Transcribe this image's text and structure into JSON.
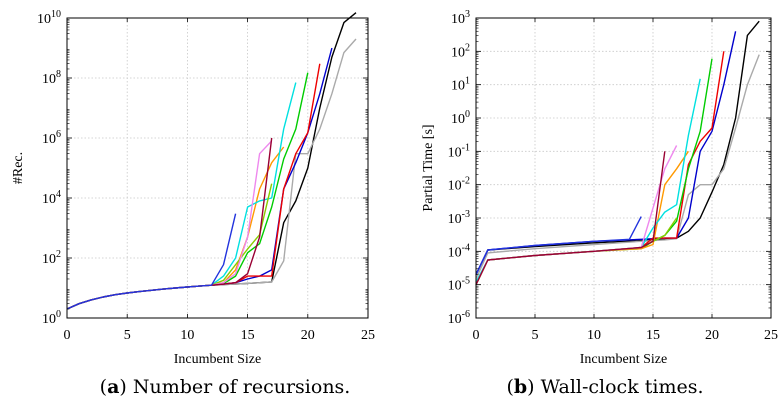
{
  "chart_data": [
    {
      "type": "line",
      "panel_label": "a",
      "caption": "Number of recursions.",
      "xlabel": "Incumbent Size",
      "ylabel": "#Rec.",
      "xlim": [
        0,
        25
      ],
      "xticks": [
        0,
        5,
        10,
        15,
        20,
        25
      ],
      "ylim": [
        1,
        10000000000.0
      ],
      "yscale": "log",
      "yticks": [
        {
          "value": 1,
          "base": "10",
          "exp": "0"
        },
        {
          "value": 100,
          "base": "10",
          "exp": "2"
        },
        {
          "value": 10000,
          "base": "10",
          "exp": "4"
        },
        {
          "value": 1000000,
          "base": "10",
          "exp": "6"
        },
        {
          "value": 100000000,
          "base": "10",
          "exp": "8"
        },
        {
          "value": 10000000000,
          "base": "10",
          "exp": "10"
        }
      ],
      "grid": true,
      "series": [
        {
          "color": "#000000",
          "x": [
            0,
            1,
            2,
            3,
            4,
            5,
            6,
            7,
            8,
            9,
            10,
            11,
            12,
            13,
            14,
            15,
            16,
            17,
            18,
            19,
            20,
            21,
            22,
            23,
            24
          ],
          "y": [
            2,
            3,
            4,
            5,
            6,
            6.8,
            7.6,
            8.4,
            9.2,
            10,
            10.8,
            11.6,
            12.4,
            13,
            13.6,
            14.2,
            15,
            16,
            1500,
            8000,
            100000.0,
            10000000.0,
            500000000.0,
            7000000000.0,
            15000000000.0
          ]
        },
        {
          "color": "#aaaaaa",
          "x": [
            0,
            1,
            2,
            3,
            4,
            5,
            6,
            7,
            8,
            9,
            10,
            11,
            12,
            13,
            14,
            15,
            16,
            17,
            18,
            19,
            20,
            21,
            22,
            23,
            24
          ],
          "y": [
            2,
            3,
            4,
            5,
            6,
            6.8,
            7.6,
            8.4,
            9.2,
            10,
            10.8,
            11.6,
            12.4,
            13,
            13.6,
            14.2,
            15,
            15.8,
            80,
            300000.0,
            300000.0,
            2000000.0,
            30000000.0,
            700000000.0,
            2000000000.0
          ]
        },
        {
          "color": "#0000cc",
          "x": [
            0,
            1,
            2,
            3,
            4,
            5,
            6,
            7,
            8,
            9,
            10,
            11,
            12,
            13,
            14,
            15,
            16,
            17,
            18,
            19,
            20,
            21,
            22
          ],
          "y": [
            2,
            3,
            4,
            5,
            6,
            6.8,
            7.6,
            8.4,
            9.2,
            10,
            10.8,
            11.6,
            12.4,
            13.5,
            15,
            20,
            25,
            40,
            20000.0,
            150000.0,
            1500000.0,
            30000000.0,
            1000000000.0
          ]
        },
        {
          "color": "#ee0000",
          "x": [
            0,
            1,
            2,
            3,
            4,
            5,
            6,
            7,
            8,
            9,
            10,
            11,
            12,
            13,
            14,
            15,
            16,
            17,
            18,
            19,
            20,
            21
          ],
          "y": [
            2,
            3,
            4,
            5,
            6,
            6.8,
            7.6,
            8.4,
            9.2,
            10,
            10.8,
            11.6,
            12.4,
            13.5,
            15,
            25,
            25,
            25,
            20000.0,
            300000.0,
            1500000.0,
            300000000.0
          ]
        },
        {
          "color": "#00cc00",
          "x": [
            0,
            1,
            2,
            3,
            4,
            5,
            6,
            7,
            8,
            9,
            10,
            11,
            12,
            13,
            14,
            15,
            16,
            17,
            18,
            19,
            20
          ],
          "y": [
            2,
            3,
            4,
            5,
            6,
            6.8,
            7.6,
            8.4,
            9.2,
            10,
            10.8,
            11.6,
            12.4,
            14,
            25,
            150,
            300,
            5000,
            200000.0,
            2000000.0,
            150000000.0
          ]
        },
        {
          "color": "#ff9900",
          "x": [
            0,
            1,
            2,
            3,
            4,
            5,
            6,
            7,
            8,
            9,
            10,
            11,
            12,
            13,
            14,
            15,
            16,
            17,
            18
          ],
          "y": [
            2,
            3,
            4,
            5,
            6,
            6.8,
            7.6,
            8.4,
            9.2,
            10,
            10.8,
            11.6,
            12.4,
            15,
            40,
            500,
            20000.0,
            150000.0,
            500000.0
          ]
        },
        {
          "color": "#00e0e0",
          "x": [
            0,
            1,
            2,
            3,
            4,
            5,
            6,
            7,
            8,
            9,
            10,
            11,
            12,
            13,
            14,
            15,
            16,
            17,
            18,
            19
          ],
          "y": [
            2,
            3,
            4,
            5,
            6,
            6.8,
            7.6,
            8.4,
            9.2,
            10,
            10.8,
            11.6,
            12.4,
            25,
            100,
            5000,
            8000,
            10000.0,
            2000000.0,
            70000000.0
          ]
        },
        {
          "color": "#88cc00",
          "x": [
            0,
            1,
            2,
            3,
            4,
            5,
            6,
            7,
            8,
            9,
            10,
            11,
            12,
            13,
            14,
            15,
            16,
            17
          ],
          "y": [
            2,
            3,
            4,
            5,
            6,
            6.8,
            7.6,
            8.4,
            9.2,
            10,
            10.8,
            11.6,
            12.4,
            18,
            60,
            200,
            600,
            30000.0
          ]
        },
        {
          "color": "#ee88ee",
          "x": [
            0,
            1,
            2,
            3,
            4,
            5,
            6,
            7,
            8,
            9,
            10,
            11,
            12,
            13,
            14,
            15,
            16,
            17
          ],
          "y": [
            2,
            3,
            4,
            5,
            6,
            6.8,
            7.6,
            8.4,
            9.2,
            10,
            10.8,
            11.6,
            12.4,
            15,
            30,
            500,
            300000.0,
            800000.0
          ]
        },
        {
          "color": "#990033",
          "x": [
            0,
            1,
            2,
            3,
            4,
            5,
            6,
            7,
            8,
            9,
            10,
            11,
            12,
            13,
            14,
            15,
            16,
            17
          ],
          "y": [
            2,
            3,
            4,
            5,
            6,
            6.8,
            7.6,
            8.4,
            9.2,
            10,
            10.8,
            11.6,
            12.4,
            13.5,
            15,
            30,
            500,
            1000000.0
          ]
        },
        {
          "color": "#2233dd",
          "x": [
            0,
            1,
            2,
            3,
            4,
            5,
            6,
            7,
            8,
            9,
            10,
            11,
            12,
            13,
            14
          ],
          "y": [
            2,
            3,
            4,
            5,
            6,
            6.8,
            7.6,
            8.4,
            9.2,
            10,
            10.8,
            11.6,
            12.4,
            60,
            3000
          ]
        }
      ]
    },
    {
      "type": "line",
      "panel_label": "b",
      "caption": "Wall-clock times.",
      "xlabel": "Incumbent Size",
      "ylabel": "Partial Time [s]",
      "xlim": [
        0,
        25
      ],
      "xticks": [
        0,
        5,
        10,
        15,
        20,
        25
      ],
      "ylim": [
        1e-06,
        1000
      ],
      "yscale": "log",
      "yticks": [
        {
          "value": 1e-06,
          "base": "10",
          "exp": "-6"
        },
        {
          "value": 1e-05,
          "base": "10",
          "exp": "-5"
        },
        {
          "value": 0.0001,
          "base": "10",
          "exp": "-4"
        },
        {
          "value": 0.001,
          "base": "10",
          "exp": "-3"
        },
        {
          "value": 0.01,
          "base": "10",
          "exp": "-2"
        },
        {
          "value": 0.1,
          "base": "10",
          "exp": "-1"
        },
        {
          "value": 1,
          "base": "10",
          "exp": "0"
        },
        {
          "value": 10,
          "base": "10",
          "exp": "1"
        },
        {
          "value": 100,
          "base": "10",
          "exp": "2"
        },
        {
          "value": 1000,
          "base": "10",
          "exp": "3"
        }
      ],
      "grid": true,
      "series": [
        {
          "color": "#000000",
          "x": [
            0,
            1,
            5,
            10,
            14,
            15,
            16,
            17,
            18,
            19,
            20,
            21,
            22,
            23,
            24
          ],
          "y": [
            2e-05,
            0.00011,
            0.00014,
            0.00018,
            0.00021,
            0.00022,
            0.00023,
            0.00025,
            0.0004,
            0.001,
            0.006,
            0.04,
            1,
            300,
            800
          ]
        },
        {
          "color": "#aaaaaa",
          "x": [
            0,
            1,
            5,
            10,
            14,
            15,
            16,
            17,
            18,
            19,
            20,
            21,
            22,
            23,
            24
          ],
          "y": [
            1.5e-05,
            9e-05,
            0.00012,
            0.00016,
            0.0002,
            0.00021,
            0.00022,
            0.00024,
            0.005,
            0.01,
            0.01,
            0.03,
            0.5,
            10,
            80
          ]
        },
        {
          "color": "#0000cc",
          "x": [
            0,
            1,
            5,
            10,
            14,
            15,
            16,
            17,
            18,
            19,
            20,
            21,
            22
          ],
          "y": [
            2e-05,
            0.00011,
            0.00015,
            0.0002,
            0.00023,
            0.00024,
            0.00025,
            0.00025,
            0.001,
            0.1,
            0.4,
            10,
            400
          ]
        },
        {
          "color": "#ee0000",
          "x": [
            0,
            1,
            5,
            10,
            14,
            15,
            16,
            17,
            18,
            19,
            20,
            21
          ],
          "y": [
            1e-05,
            5.5e-05,
            7.5e-05,
            0.0001,
            0.00013,
            0.00025,
            0.00025,
            0.00025,
            0.04,
            0.2,
            0.5,
            100
          ]
        },
        {
          "color": "#00cc00",
          "x": [
            0,
            1,
            5,
            10,
            14,
            15,
            16,
            17,
            18,
            19,
            20
          ],
          "y": [
            1e-05,
            5.5e-05,
            7.5e-05,
            0.0001,
            0.00012,
            0.0002,
            0.0003,
            0.0008,
            0.03,
            0.4,
            60
          ]
        },
        {
          "color": "#ff9900",
          "x": [
            0,
            1,
            5,
            10,
            14,
            15,
            16,
            17,
            18
          ],
          "y": [
            1e-05,
            5.5e-05,
            7.5e-05,
            0.0001,
            0.00012,
            0.00016,
            0.01,
            0.03,
            0.1
          ]
        },
        {
          "color": "#00e0e0",
          "x": [
            0,
            1,
            5,
            10,
            14,
            15,
            16,
            17,
            18,
            19
          ],
          "y": [
            1.2e-05,
            5.5e-05,
            7.5e-05,
            0.0001,
            0.00013,
            0.0005,
            0.0015,
            0.0025,
            0.3,
            15
          ]
        },
        {
          "color": "#88cc00",
          "x": [
            0,
            1,
            5,
            10,
            14,
            15,
            16,
            17
          ],
          "y": [
            1e-05,
            5.5e-05,
            7.5e-05,
            0.0001,
            0.00013,
            0.0002,
            0.0003,
            0.001
          ]
        },
        {
          "color": "#ee88ee",
          "x": [
            0,
            1,
            5,
            10,
            14,
            15,
            16,
            17
          ],
          "y": [
            1e-05,
            5.5e-05,
            7.5e-05,
            0.0001,
            0.00013,
            0.002,
            0.03,
            0.15
          ]
        },
        {
          "color": "#990033",
          "x": [
            0,
            1,
            5,
            10,
            14,
            15,
            16
          ],
          "y": [
            1e-05,
            5.5e-05,
            7.5e-05,
            0.0001,
            0.00013,
            0.0002,
            0.1
          ]
        },
        {
          "color": "#2233dd",
          "x": [
            0,
            1,
            5,
            10,
            13,
            14
          ],
          "y": [
            2e-05,
            0.00011,
            0.00015,
            0.0002,
            0.00023,
            0.0011
          ]
        }
      ]
    }
  ]
}
